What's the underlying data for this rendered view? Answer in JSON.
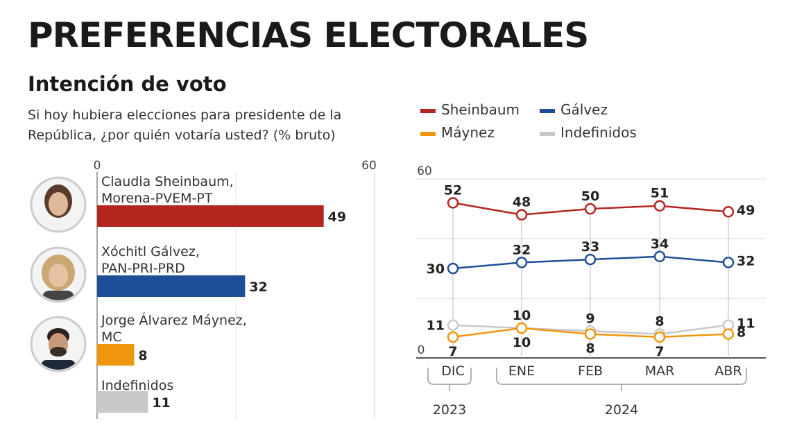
{
  "header": {
    "title": "PREFERENCIAS ELECTORALES",
    "subtitle": "Intención de voto",
    "question": "Si hoy hubiera elecciones para presidente de la República, ¿por quién votaría usted?  (% bruto)"
  },
  "colors": {
    "sheinbaum": "#b3261e",
    "galvez": "#1f4e99",
    "maynez": "#f0960e",
    "indefinidos": "#c8c8c8"
  },
  "chart_data": [
    {
      "type": "bar",
      "orientation": "horizontal",
      "xlim": [
        0,
        60
      ],
      "tick_labels": [
        "0",
        "60"
      ],
      "bars": [
        {
          "label_line1": "Claudia Sheinbaum,",
          "label_line2": "Morena-PVEM-PT",
          "value": 49,
          "value_label": "49",
          "color": "#b3261e",
          "avatar": "sheinbaum-photo"
        },
        {
          "label_line1": "Xóchitl Gálvez,",
          "label_line2": "PAN-PRI-PRD",
          "value": 32,
          "value_label": "32",
          "color": "#1f4e99",
          "avatar": "galvez-photo"
        },
        {
          "label_line1": "Jorge Álvarez Máynez,",
          "label_line2": "MC",
          "value": 8,
          "value_label": "8",
          "color": "#f0960e",
          "avatar": "maynez-photo"
        },
        {
          "label_line1": "Indefinidos",
          "label_line2": "",
          "value": 11,
          "value_label": "11",
          "color": "#c8c8c8",
          "avatar": ""
        }
      ]
    },
    {
      "type": "line",
      "x": [
        "DIC",
        "ENE",
        "FEB",
        "MAR",
        "ABR"
      ],
      "ylim": [
        0,
        60
      ],
      "y_tick_labels": [
        "0",
        "60"
      ],
      "year_groups": [
        {
          "label": "2023",
          "from": 0,
          "to": 0
        },
        {
          "label": "2024",
          "from": 1,
          "to": 4
        }
      ],
      "legend": [
        {
          "name": "Sheinbaum",
          "color": "#b3261e"
        },
        {
          "name": "Gálvez",
          "color": "#1f4e99"
        },
        {
          "name": "Máynez",
          "color": "#f0960e"
        },
        {
          "name": "Indefinidos",
          "color": "#c8c8c8"
        }
      ],
      "series": [
        {
          "name": "Sheinbaum",
          "values": [
            52,
            48,
            50,
            51,
            49
          ],
          "color": "#b3261e",
          "label_pos": [
            "above",
            "above",
            "above",
            "above",
            "right"
          ]
        },
        {
          "name": "Gálvez",
          "values": [
            30,
            32,
            33,
            34,
            32
          ],
          "color": "#1f4e99",
          "label_pos": [
            "left",
            "above",
            "above",
            "above",
            "right"
          ]
        },
        {
          "name": "Indefinidos",
          "values": [
            11,
            10,
            9,
            8,
            11
          ],
          "color": "#c8c8c8",
          "label_pos": [
            "left",
            "above",
            "above",
            "above",
            "right"
          ]
        },
        {
          "name": "Máynez",
          "values": [
            7,
            10,
            8,
            7,
            8
          ],
          "color": "#f0960e",
          "label_pos": [
            "below",
            "below",
            "below",
            "below",
            "right"
          ]
        }
      ]
    }
  ]
}
